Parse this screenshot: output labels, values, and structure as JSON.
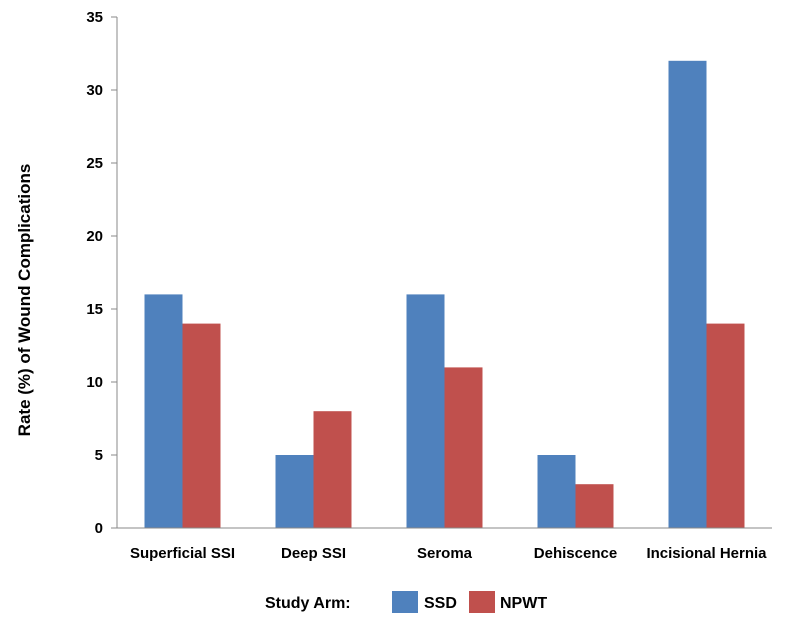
{
  "chart_data": {
    "type": "bar",
    "categories": [
      "Superficial SSI",
      "Deep SSI",
      "Seroma",
      "Dehiscence",
      "Incisional Hernia"
    ],
    "series": [
      {
        "name": "SSD",
        "values": [
          16,
          5,
          16,
          5,
          32
        ],
        "color": "#4f81bd"
      },
      {
        "name": "NPWT",
        "values": [
          14,
          8,
          11,
          3,
          14
        ],
        "color": "#c0504d"
      }
    ],
    "yticks": [
      "0",
      "5",
      "10",
      "15",
      "20",
      "25",
      "30",
      "35"
    ],
    "ylim": [
      0,
      35
    ],
    "ylabel": "Rate (%) of Wound Complications",
    "xlabel": "",
    "grid": false,
    "legend_title": "Study Arm:",
    "legend_position": "bottom"
  }
}
